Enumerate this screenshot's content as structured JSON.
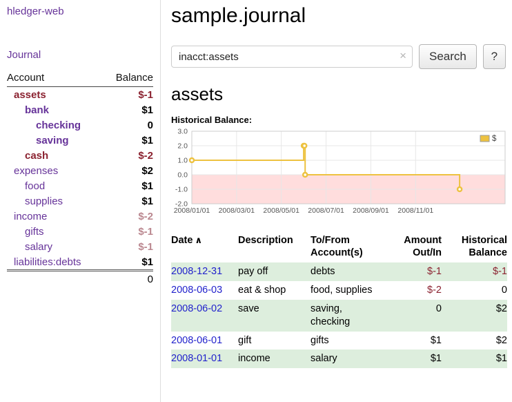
{
  "palette": {
    "link_purple": "#663399",
    "link_blue": "#2222cc",
    "negative_strong": "#8b2230",
    "negative_muted": "#bb8890",
    "row_green": "#ddeedd",
    "chart_line_gold": "#edc240",
    "chart_negative_region": "#ffdddd"
  },
  "sidebar": {
    "app_title": "hledger-web",
    "journal_label": "Journal",
    "accounts_table": {
      "headers": {
        "account": "Account",
        "balance": "Balance"
      },
      "rows": [
        {
          "name": "assets",
          "balance": "$-1",
          "depth": 1,
          "bold": true,
          "name_style": "neg",
          "balance_style": "neg"
        },
        {
          "name": "bank",
          "balance": "$1",
          "depth": 2,
          "bold": true,
          "name_style": "",
          "balance_style": ""
        },
        {
          "name": "checking",
          "balance": "0",
          "depth": 3,
          "bold": true,
          "name_style": "",
          "balance_style": ""
        },
        {
          "name": "saving",
          "balance": "$1",
          "depth": 3,
          "bold": true,
          "name_style": "",
          "balance_style": ""
        },
        {
          "name": "cash",
          "balance": "$-2",
          "depth": 2,
          "bold": true,
          "name_style": "neg",
          "balance_style": "neg"
        },
        {
          "name": "expenses",
          "balance": "$2",
          "depth": 1,
          "bold": false,
          "name_style": "",
          "balance_style": ""
        },
        {
          "name": "food",
          "balance": "$1",
          "depth": 2,
          "bold": false,
          "name_style": "",
          "balance_style": ""
        },
        {
          "name": "supplies",
          "balance": "$1",
          "depth": 2,
          "bold": false,
          "name_style": "",
          "balance_style": ""
        },
        {
          "name": "income",
          "balance": "$-2",
          "depth": 1,
          "bold": false,
          "name_style": "",
          "balance_style": "neg-muted"
        },
        {
          "name": "gifts",
          "balance": "$-1",
          "depth": 2,
          "bold": false,
          "name_style": "",
          "balance_style": "neg-muted"
        },
        {
          "name": "salary",
          "balance": "$-1",
          "depth": 2,
          "bold": false,
          "name_style": "",
          "balance_style": "neg-muted"
        },
        {
          "name": "liabilities:debts",
          "balance": "$1",
          "depth": 1,
          "bold": false,
          "name_style": "",
          "balance_style": ""
        }
      ],
      "total": "0"
    }
  },
  "main": {
    "title": "sample.journal",
    "search": {
      "value": "inacct:assets",
      "clear_icon": "×",
      "button_label": "Search",
      "help_label": "?"
    },
    "account_heading": "assets",
    "chart_title": "Historical Balance:"
  },
  "chart_data": {
    "type": "line",
    "title": "Historical Balance:",
    "step": true,
    "legend": {
      "label": "$",
      "position": "top-right"
    },
    "series": [
      {
        "name": "$",
        "points": [
          [
            "2008-01-01",
            1
          ],
          [
            "2008-06-01",
            2
          ],
          [
            "2008-06-02",
            2
          ],
          [
            "2008-06-03",
            0
          ],
          [
            "2008-12-31",
            -1
          ]
        ]
      }
    ],
    "ylim": [
      -2,
      3
    ],
    "yticks": [
      {
        "value": 3,
        "label": "3.0"
      },
      {
        "value": 2,
        "label": "2.0"
      },
      {
        "value": 1,
        "label": "1.0"
      },
      {
        "value": 0,
        "label": "0.0"
      },
      {
        "value": -1,
        "label": "-1.0"
      },
      {
        "value": -2,
        "label": "-2.0"
      }
    ],
    "xticks": [
      {
        "month": 0,
        "label": "2008/01/01"
      },
      {
        "month": 2,
        "label": "2008/03/01"
      },
      {
        "month": 4,
        "label": "2008/05/01"
      },
      {
        "month": 6,
        "label": "2008/07/01"
      },
      {
        "month": 8,
        "label": "2008/09/01"
      },
      {
        "month": 10,
        "label": "2008/11/01"
      }
    ],
    "x_domain_months": 14,
    "grid": true,
    "colors": {
      "line": "#edc240",
      "negative_region": "#ffdddd",
      "grid": "#e7e7e7",
      "axis_text": "#555555"
    }
  },
  "register": {
    "headers": [
      {
        "line1": "Date",
        "line2": "",
        "sort_icon": "∧"
      },
      {
        "line1": "Description",
        "line2": ""
      },
      {
        "line1": "To/From",
        "line2": "Account(s)"
      },
      {
        "line1": "Amount",
        "line2": "Out/In"
      },
      {
        "line1": "Historical",
        "line2": "Balance"
      }
    ],
    "rows": [
      {
        "date": "2008-12-31",
        "description": "pay off",
        "accounts": "debts",
        "amount": "$-1",
        "balance": "$-1"
      },
      {
        "date": "2008-06-03",
        "description": "eat & shop",
        "accounts": "food, supplies",
        "amount": "$-2",
        "balance": "0"
      },
      {
        "date": "2008-06-02",
        "description": "save",
        "accounts": "saving, checking",
        "amount": "0",
        "balance": "$2"
      },
      {
        "date": "2008-06-01",
        "description": "gift",
        "accounts": "gifts",
        "amount": "$1",
        "balance": "$2"
      },
      {
        "date": "2008-01-01",
        "description": "income",
        "accounts": "salary",
        "amount": "$1",
        "balance": "$1"
      }
    ]
  }
}
